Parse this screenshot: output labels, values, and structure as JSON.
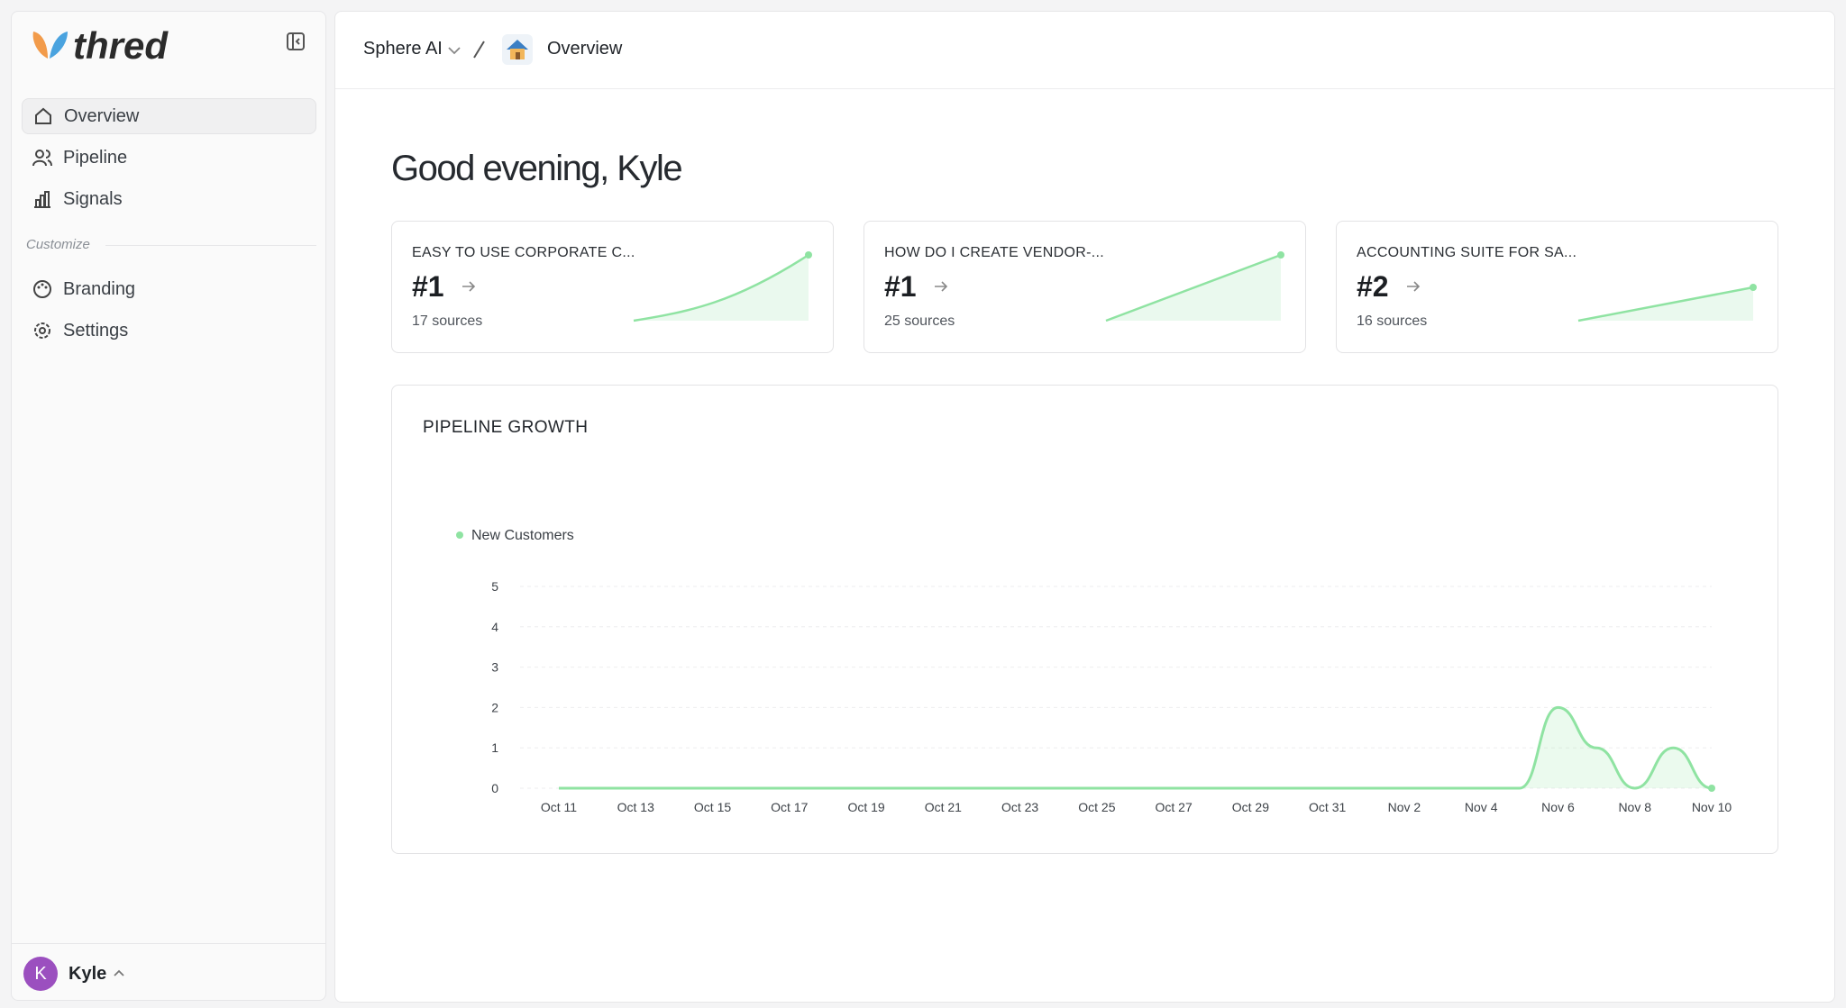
{
  "sidebar": {
    "brand": "thred",
    "nav": [
      "Overview",
      "Pipeline",
      "Signals"
    ],
    "section": "Customize",
    "custom_nav": [
      "Branding",
      "Settings"
    ],
    "user": {
      "initial": "K",
      "name": "Kyle"
    }
  },
  "header": {
    "workspace": "Sphere AI",
    "page": "Overview"
  },
  "greeting": "Good evening, Kyle",
  "cards": [
    {
      "query": "EASY TO USE CORPORATE C...",
      "rank": "#1",
      "sources": "17 sources"
    },
    {
      "query": "HOW DO I CREATE VENDOR-...",
      "rank": "#1",
      "sources": "25 sources"
    },
    {
      "query": "ACCOUNTING SUITE FOR SA...",
      "rank": "#2",
      "sources": "16 sources"
    }
  ],
  "chart_data": {
    "type": "line",
    "title": "PIPELINE GROWTH",
    "categories": [
      "Oct 11",
      null,
      "Oct 13",
      null,
      "Oct 15",
      null,
      "Oct 17",
      null,
      "Oct 19",
      null,
      "Oct 21",
      null,
      "Oct 23",
      null,
      "Oct 25",
      null,
      "Oct 27",
      null,
      "Oct 29",
      null,
      "Oct 31",
      null,
      "Nov 2",
      null,
      "Nov 4",
      null,
      "Nov 6",
      null,
      "Nov 8",
      null,
      "Nov 10"
    ],
    "series": [
      {
        "name": "New Customers",
        "color": "#8fe3a2",
        "values": [
          0,
          0,
          0,
          0,
          0,
          0,
          0,
          0,
          0,
          0,
          0,
          0,
          0,
          0,
          0,
          0,
          0,
          0,
          0,
          0,
          0,
          0,
          0,
          0,
          0,
          0,
          2,
          1,
          0,
          1,
          0
        ]
      }
    ],
    "ylim": [
      0,
      5
    ],
    "yticks": [
      0,
      1,
      2,
      3,
      4,
      5
    ],
    "grid": true
  }
}
